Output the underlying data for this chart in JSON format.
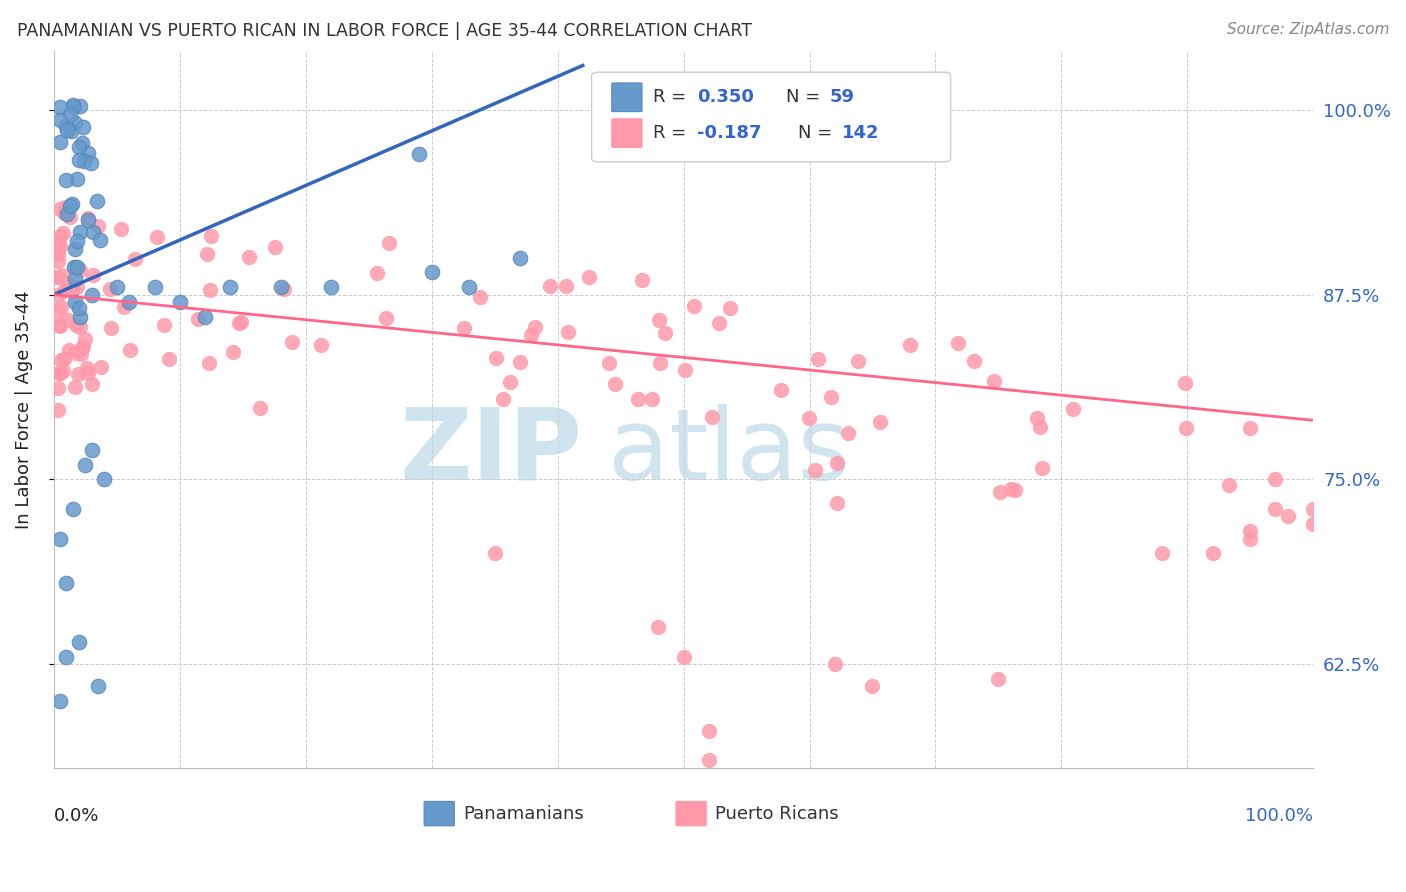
{
  "title": "PANAMANIAN VS PUERTO RICAN IN LABOR FORCE | AGE 35-44 CORRELATION CHART",
  "source": "Source: ZipAtlas.com",
  "ylabel": "In Labor Force | Age 35-44",
  "ytick_labels": [
    "62.5%",
    "75.0%",
    "87.5%",
    "100.0%"
  ],
  "ytick_values": [
    0.625,
    0.75,
    0.875,
    1.0
  ],
  "xlim": [
    0.0,
    1.0
  ],
  "ylim": [
    0.555,
    1.04
  ],
  "pan_R": 0.35,
  "pan_N": 59,
  "pr_R": -0.187,
  "pr_N": 142,
  "pan_color": "#6699CC",
  "pan_edge_color": "#5588BB",
  "pr_color": "#FF99AA",
  "pr_edge_color": "#FF99AA",
  "pan_line_color": "#3366BB",
  "pr_line_color": "#FF6688",
  "background_color": "#FFFFFF",
  "watermark_color": "#D0E4F0",
  "title_color": "#333333",
  "source_color": "#888888",
  "axis_label_color": "#222222",
  "right_tick_color": "#3366CC",
  "legend_text_color": "#333333",
  "legend_value_color": "#3366CC",
  "pan_line_x": [
    0.0,
    0.42
  ],
  "pan_line_y": [
    0.875,
    1.03
  ],
  "pr_line_x": [
    0.0,
    1.0
  ],
  "pr_line_y": [
    0.875,
    0.79
  ]
}
